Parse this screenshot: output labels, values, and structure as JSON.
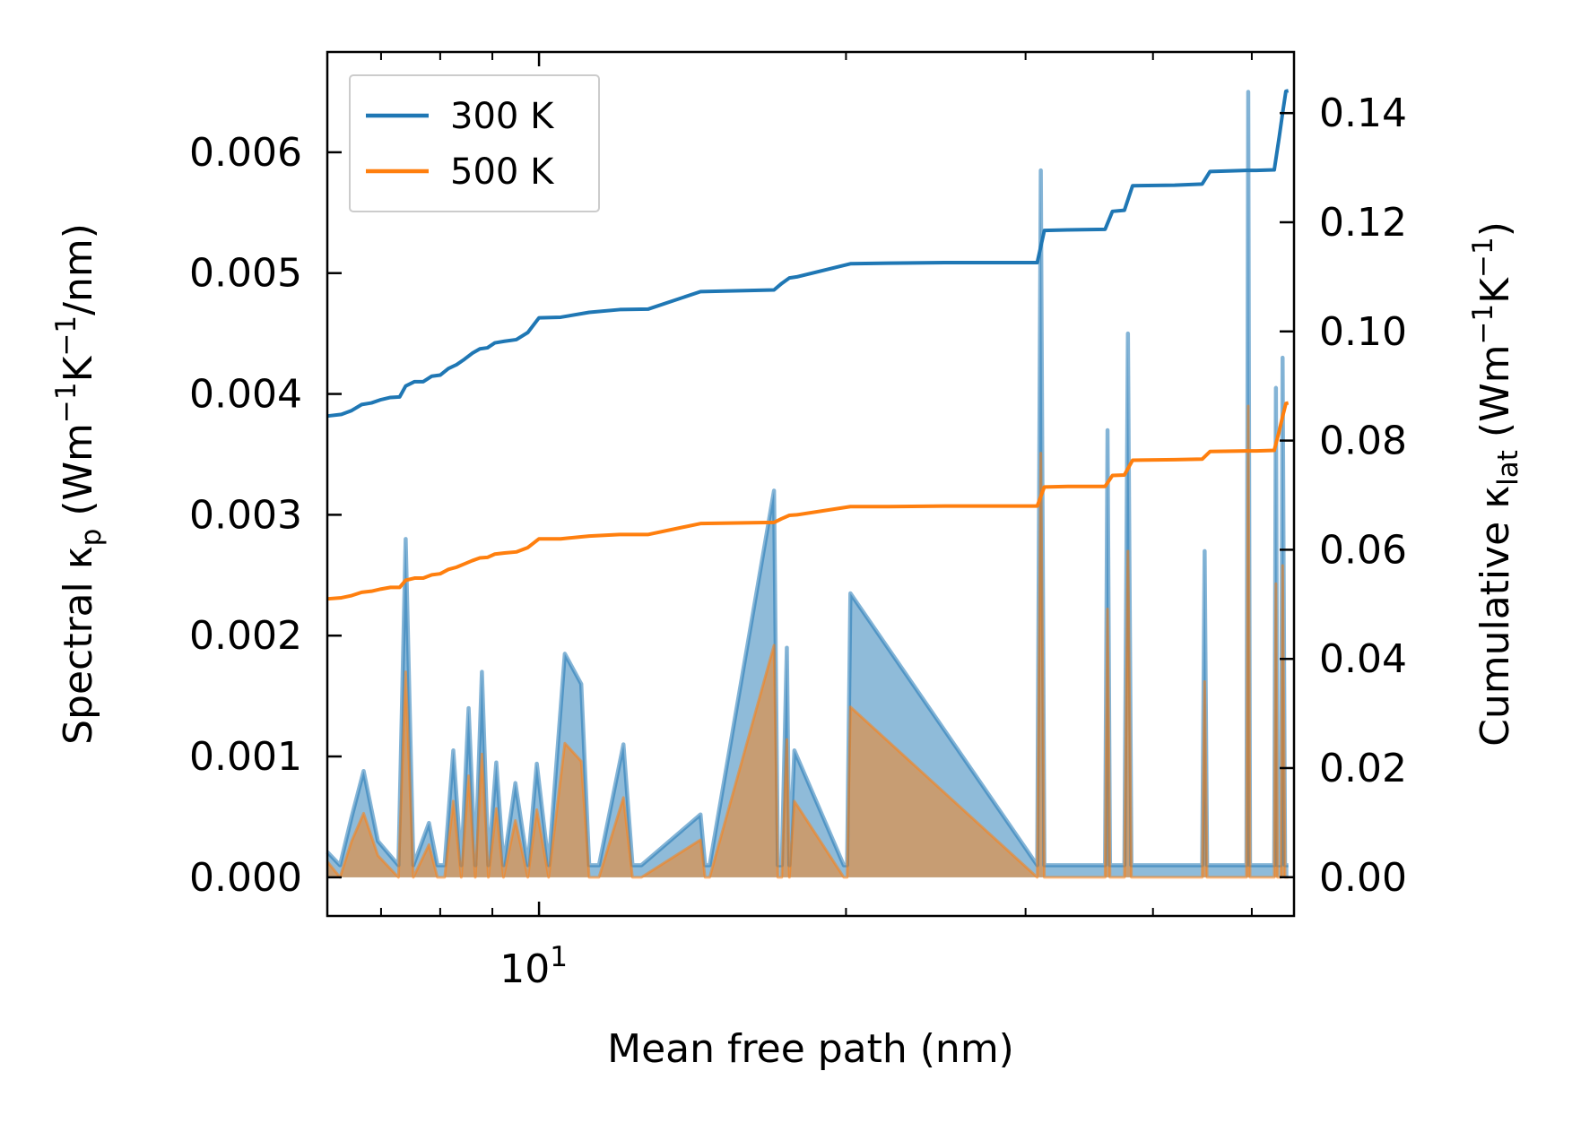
{
  "chart_data": {
    "type": "line",
    "x_scale": "log",
    "xlim": [
      6.2,
      55.0
    ],
    "xlabel": "Mean free path (nm)",
    "x_ticks": [
      {
        "value": 10,
        "base": "10",
        "exp": "1"
      }
    ],
    "left_axis": {
      "label_parts": [
        "Spectral κ",
        "p",
        " (Wm",
        "−1",
        "K",
        "−1",
        "/nm)"
      ],
      "ylim": [
        -0.00032,
        0.00683
      ],
      "ticks": [
        "0.000",
        "0.001",
        "0.002",
        "0.003",
        "0.004",
        "0.005",
        "0.006"
      ]
    },
    "right_axis": {
      "label_parts": [
        "Cumulative κ",
        "lat",
        " (Wm",
        "−1",
        "K",
        "−1",
        ")"
      ],
      "ylim": [
        -0.0071,
        0.1512
      ],
      "ticks": [
        "0.00",
        "0.02",
        "0.04",
        "0.06",
        "0.08",
        "0.10",
        "0.12",
        "0.14"
      ]
    },
    "legend": {
      "position": "top-left",
      "entries": [
        "300 K",
        "500 K"
      ]
    },
    "colors": {
      "s300": "#1f77b4",
      "s500": "#ff7f0e"
    },
    "spectral_x": [
      6.2,
      6.38,
      6.55,
      6.73,
      6.95,
      7.28,
      7.4,
      7.53,
      7.8,
      7.95,
      8.08,
      8.24,
      8.39,
      8.53,
      8.66,
      8.79,
      8.92,
      9.08,
      9.23,
      9.48,
      9.75,
      9.95,
      10.22,
      10.6,
      11.0,
      11.2,
      11.45,
      12.1,
      12.35,
      12.6,
      14.4,
      14.55,
      14.7,
      17.0,
      17.15,
      17.3,
      17.5,
      17.6,
      17.8,
      19.9,
      20.05,
      20.2,
      30.8,
      31.05,
      31.3,
      35.9,
      36.1,
      36.3,
      37.5,
      37.8,
      38.1,
      44.7,
      44.95,
      45.2,
      49.4,
      49.6,
      49.8,
      52.6,
      52.8,
      53.0,
      53.4,
      53.6,
      53.9,
      54.1,
      54.3
    ],
    "spectral_300": [
      0.00021,
      0.0001,
      0.0005,
      0.00088,
      0.0003,
      0.0001,
      0.0028,
      0.0001,
      0.00045,
      0.0001,
      0.0001,
      0.00105,
      0.0001,
      0.0014,
      0.0001,
      0.0017,
      0.0001,
      0.00095,
      0.0001,
      0.00078,
      0.0001,
      0.00094,
      0.0001,
      0.00185,
      0.0016,
      0.0001,
      0.0001,
      0.0011,
      0.0001,
      0.0001,
      0.00052,
      0.0001,
      0.0001,
      0.0032,
      0.0001,
      0.0001,
      0.0019,
      0.0001,
      0.00105,
      0.0001,
      0.0001,
      0.00235,
      0.0001,
      0.00585,
      0.0001,
      0.0001,
      0.0037,
      0.0001,
      0.0001,
      0.0045,
      0.0001,
      0.0001,
      0.0027,
      0.0001,
      0.0001,
      0.0065,
      0.0001,
      0.0001,
      0.00405,
      0.0001,
      0.0001,
      0.0043,
      0.0001,
      0.0001,
      0.0001
    ],
    "spectral_500": [
      0.00013,
      0.0,
      0.0003,
      0.00053,
      0.00018,
      0.0,
      0.0017,
      0.0,
      0.00027,
      0.0,
      0.0,
      0.00063,
      0.0,
      0.00084,
      0.0,
      0.00102,
      0.0,
      0.00057,
      0.0,
      0.00047,
      0.0,
      0.00056,
      0.0,
      0.00111,
      0.00096,
      0.0,
      0.0,
      0.00066,
      0.0,
      0.0,
      0.00031,
      0.0,
      0.0,
      0.00192,
      0.0,
      0.0,
      0.00114,
      0.0,
      0.00063,
      0.0,
      0.0,
      0.00141,
      0.0,
      0.00351,
      0.0,
      0.0,
      0.00222,
      0.0,
      0.0,
      0.0027,
      0.0,
      0.0,
      0.00162,
      0.0,
      0.0,
      0.0039,
      0.0,
      0.0,
      0.00243,
      0.0,
      0.0,
      0.00258,
      0.0,
      0.0,
      0.0
    ],
    "cumulative_x": [
      6.2,
      6.4,
      6.55,
      6.7,
      6.85,
      7.0,
      7.15,
      7.3,
      7.4,
      7.55,
      7.7,
      7.85,
      8.0,
      8.15,
      8.3,
      8.45,
      8.6,
      8.75,
      8.9,
      9.05,
      9.25,
      9.5,
      9.75,
      10.0,
      10.5,
      11.2,
      12.0,
      12.8,
      14.4,
      17.0,
      17.3,
      17.6,
      17.9,
      20.2,
      22.0,
      25.0,
      30.8,
      31.3,
      33.0,
      35.9,
      36.5,
      37.5,
      38.2,
      42.0,
      44.7,
      45.5,
      49.4,
      50.5,
      52.6,
      53.2,
      53.6,
      54.0,
      54.3
    ],
    "cumulative_300": [
      0.0845,
      0.0848,
      0.0855,
      0.0866,
      0.0869,
      0.0875,
      0.0879,
      0.088,
      0.09,
      0.0908,
      0.0908,
      0.0918,
      0.092,
      0.0932,
      0.0939,
      0.0949,
      0.096,
      0.0968,
      0.097,
      0.0979,
      0.0982,
      0.0985,
      0.0998,
      0.1025,
      0.1026,
      0.1035,
      0.104,
      0.1041,
      0.1073,
      0.1076,
      0.1088,
      0.1098,
      0.11,
      0.1124,
      0.1125,
      0.1126,
      0.1126,
      0.1185,
      0.1186,
      0.1187,
      0.122,
      0.1222,
      0.1267,
      0.1268,
      0.127,
      0.1293,
      0.1295,
      0.1295,
      0.1296,
      0.1357,
      0.14,
      0.144,
      0.1441
    ],
    "cumulative_500": [
      0.051,
      0.0512,
      0.0516,
      0.0522,
      0.0524,
      0.0528,
      0.0531,
      0.0531,
      0.0544,
      0.0548,
      0.0548,
      0.0554,
      0.0556,
      0.0564,
      0.0568,
      0.0574,
      0.058,
      0.0585,
      0.0586,
      0.0592,
      0.0594,
      0.0596,
      0.0604,
      0.062,
      0.062,
      0.0625,
      0.0628,
      0.0628,
      0.0648,
      0.065,
      0.0657,
      0.0663,
      0.0664,
      0.0679,
      0.0679,
      0.068,
      0.068,
      0.0715,
      0.0716,
      0.0716,
      0.0736,
      0.0737,
      0.0764,
      0.0765,
      0.0766,
      0.078,
      0.0781,
      0.0781,
      0.0782,
      0.0818,
      0.0844,
      0.0868,
      0.0869
    ]
  }
}
